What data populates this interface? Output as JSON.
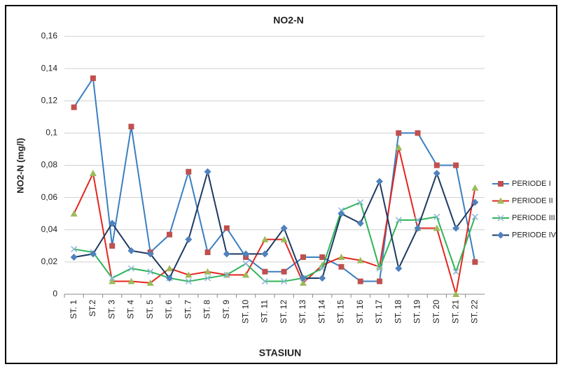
{
  "chart_data": {
    "type": "line",
    "title": "NO2-N",
    "y_label": "NO2-N (mg/l)",
    "x_label": "STASIUN",
    "categories": [
      "ST. 1",
      "ST.2",
      "ST. 3",
      "ST. 4",
      "ST. 5",
      "ST. 6",
      "ST. 7",
      "ST. 8",
      "ST. 9",
      "ST. 10",
      "ST. 11",
      "ST. 12",
      "ST. 13",
      "ST. 14",
      "ST. 15",
      "ST. 16",
      "ST. 17",
      "ST. 18",
      "ST. 19",
      "ST. 20",
      "ST. 21",
      "ST. 22"
    ],
    "series": [
      {
        "name": "PERIODE I",
        "color": "#3a7fc1",
        "marker": "square",
        "marker_color": "#c0504d",
        "values": [
          0.116,
          0.134,
          0.03,
          0.104,
          0.026,
          0.037,
          0.076,
          0.026,
          0.041,
          0.023,
          0.014,
          0.014,
          0.023,
          0.023,
          0.017,
          0.008,
          0.008,
          0.1,
          0.1,
          0.08,
          0.08,
          0.02
        ]
      },
      {
        "name": "PERIODE II",
        "color": "#e3261f",
        "marker": "triangle",
        "marker_color": "#9bbb59",
        "values": [
          0.05,
          0.075,
          0.008,
          0.008,
          0.007,
          0.016,
          0.012,
          0.014,
          0.012,
          0.012,
          0.034,
          0.034,
          0.007,
          0.018,
          0.023,
          0.021,
          0.017,
          0.091,
          0.041,
          0.041,
          0.0,
          0.066
        ]
      },
      {
        "name": "PERIODE III",
        "color": "#2fb45a",
        "marker": "x",
        "marker_color": "#8fb8d8",
        "values": [
          0.028,
          0.026,
          0.01,
          0.016,
          0.014,
          0.01,
          0.008,
          0.01,
          0.012,
          0.019,
          0.008,
          0.008,
          0.01,
          0.016,
          0.052,
          0.057,
          0.016,
          0.046,
          0.046,
          0.048,
          0.014,
          0.048
        ]
      },
      {
        "name": "PERIODE IV",
        "color": "#1f3a60",
        "marker": "diamond",
        "marker_color": "#4f81bd",
        "values": [
          0.023,
          0.025,
          0.044,
          0.027,
          0.025,
          0.01,
          0.034,
          0.076,
          0.025,
          0.025,
          0.025,
          0.041,
          0.01,
          0.01,
          0.05,
          0.044,
          0.07,
          0.016,
          0.041,
          0.075,
          0.041,
          0.057
        ]
      }
    ],
    "ylim": [
      0,
      0.16
    ],
    "yticks": [
      0,
      {
        "value": 0.02,
        "label": "0,02"
      },
      {
        "value": 0.04,
        "label": "0,04"
      },
      {
        "value": 0.06,
        "label": "0,06"
      },
      {
        "value": 0.08,
        "label": "0,08"
      },
      {
        "value": 0.1,
        "label": "0,1"
      },
      {
        "value": 0.12,
        "label": "0,12"
      },
      {
        "value": 0.14,
        "label": "0,14"
      },
      {
        "value": 0.16,
        "label": "0,16"
      }
    ],
    "grid": true,
    "legend": "right"
  }
}
